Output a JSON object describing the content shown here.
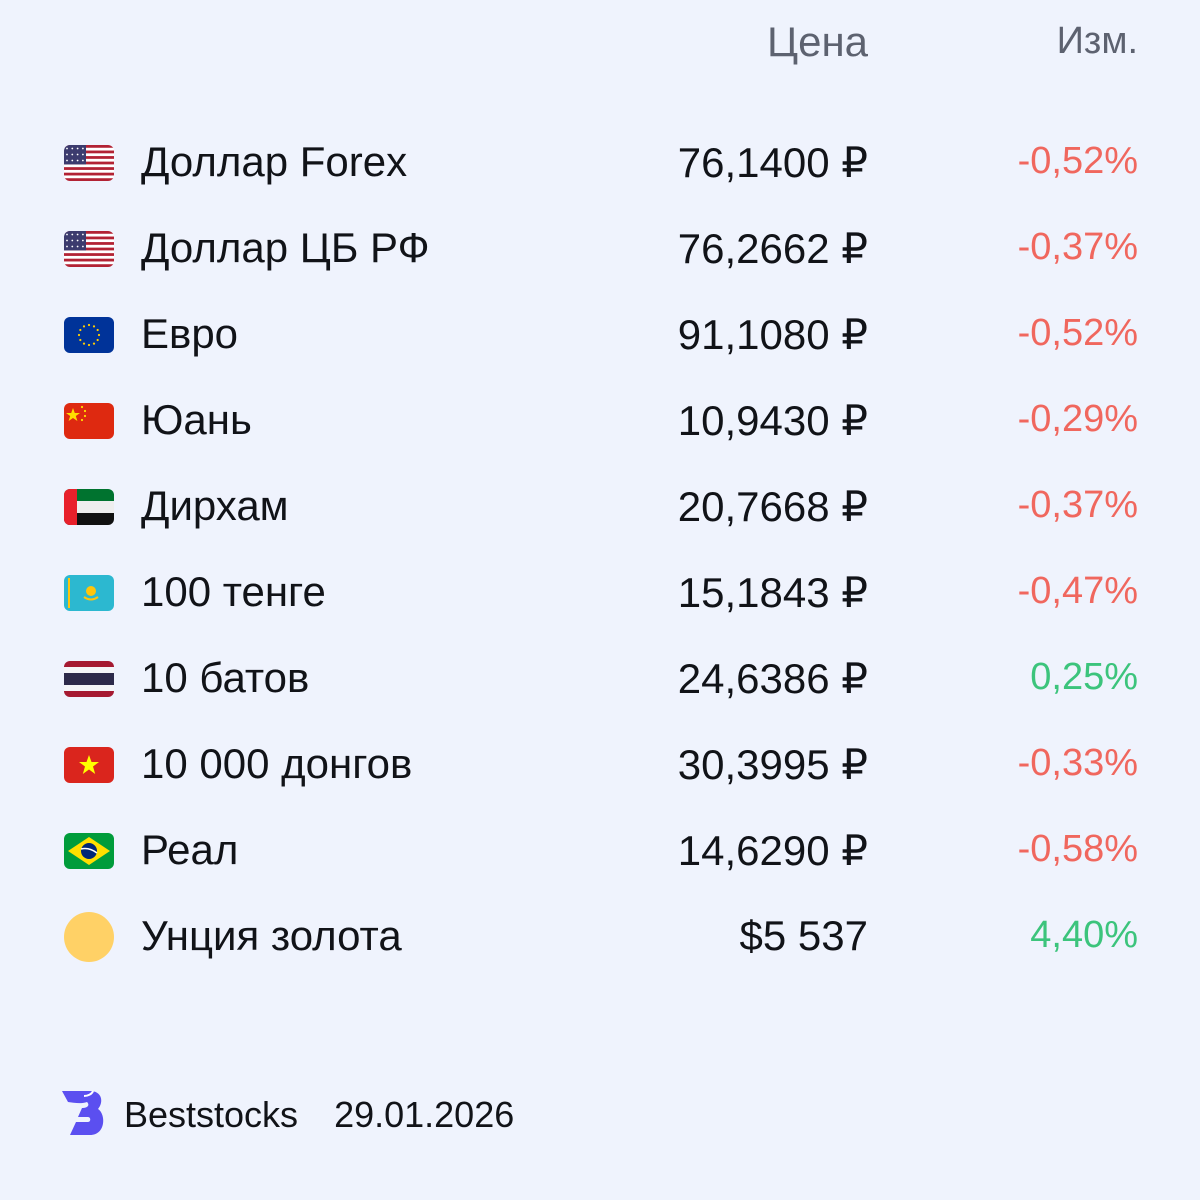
{
  "header": {
    "price_label": "Цена",
    "change_label": "Изм."
  },
  "colors": {
    "negative": "#f0675e",
    "positive": "#3cc47c",
    "background": "#eff3fd",
    "brand": "#5b4ff0"
  },
  "rows": [
    {
      "flag": "us-flag-icon",
      "name": "Доллар Forex",
      "price": "76,1400 ₽",
      "change": "-0,52%",
      "direction": "down"
    },
    {
      "flag": "us-flag-icon",
      "name": "Доллар ЦБ РФ",
      "price": "76,2662 ₽",
      "change": "-0,37%",
      "direction": "down"
    },
    {
      "flag": "eu-flag-icon",
      "name": "Евро",
      "price": "91,1080 ₽",
      "change": "-0,52%",
      "direction": "down"
    },
    {
      "flag": "cn-flag-icon",
      "name": "Юань",
      "price": "10,9430 ₽",
      "change": "-0,29%",
      "direction": "down"
    },
    {
      "flag": "ae-flag-icon",
      "name": "Дирхам",
      "price": "20,7668 ₽",
      "change": "-0,37%",
      "direction": "down"
    },
    {
      "flag": "kz-flag-icon",
      "name": "100 тенге",
      "price": "15,1843 ₽",
      "change": "-0,47%",
      "direction": "down"
    },
    {
      "flag": "th-flag-icon",
      "name": "10 батов",
      "price": "24,6386 ₽",
      "change": "0,25%",
      "direction": "up"
    },
    {
      "flag": "vn-flag-icon",
      "name": "10 000 донгов",
      "price": "30,3995 ₽",
      "change": "-0,33%",
      "direction": "down"
    },
    {
      "flag": "br-flag-icon",
      "name": "Реал",
      "price": "14,6290 ₽",
      "change": "-0,58%",
      "direction": "down"
    },
    {
      "flag": "gold-coin-icon",
      "name": "Унция золота",
      "price": "$5 537",
      "change": "4,40%",
      "direction": "up"
    }
  ],
  "footer": {
    "brand": "Beststocks",
    "date": "29.01.2026",
    "logo": "beststocks-logo-icon"
  }
}
